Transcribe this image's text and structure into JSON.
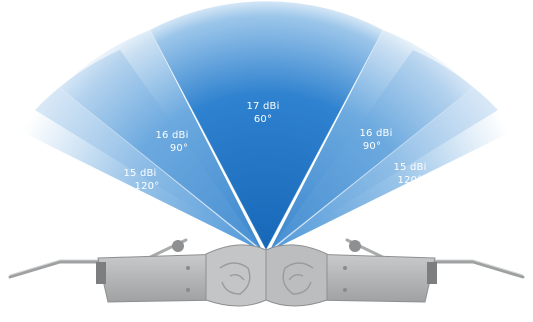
{
  "beams": [
    {
      "id": "left-120",
      "gain": "15 dBi",
      "angle": "120°"
    },
    {
      "id": "left-90",
      "gain": "16 dBi",
      "angle": "90°"
    },
    {
      "id": "center-60",
      "gain": "17 dBi",
      "angle": "60°"
    },
    {
      "id": "right-90",
      "gain": "16 dBi",
      "angle": "90°"
    },
    {
      "id": "right-120",
      "gain": "15 dBi",
      "angle": "120°"
    }
  ],
  "colors": {
    "beam_core": "#1f73c4",
    "beam_mid": "#4d97d8",
    "beam_edge": "#cfe3f4",
    "label_text": "#ffffff",
    "bracket": "#a9aaab",
    "bracket_dark": "#7f8081",
    "antenna_body": "#b8b9ba"
  }
}
